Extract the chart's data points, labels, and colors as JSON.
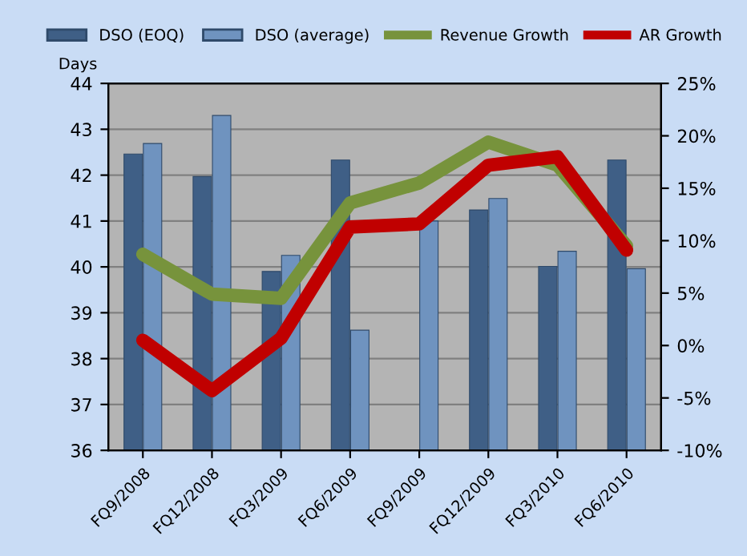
{
  "chart_data": {
    "type": "bar",
    "categories": [
      "FQ9/2008",
      "FQ12/2008",
      "FQ3/2009",
      "FQ6/2009",
      "FQ9/2009",
      "FQ12/2009",
      "FQ3/2010",
      "FQ6/2010"
    ],
    "ylabel": "Days",
    "ylim": [
      36,
      44
    ],
    "yticks": [
      36,
      37,
      38,
      39,
      40,
      41,
      42,
      43,
      44
    ],
    "y2lim": [
      -10,
      25
    ],
    "y2ticks": [
      {
        "value": -10,
        "label": "-10%"
      },
      {
        "value": -5,
        "label": "-5%"
      },
      {
        "value": 0,
        "label": "0%"
      },
      {
        "value": 5,
        "label": "5%"
      },
      {
        "value": 10,
        "label": "10%"
      },
      {
        "value": 15,
        "label": "15%"
      },
      {
        "value": 20,
        "label": "20%"
      },
      {
        "value": 25,
        "label": "25%"
      }
    ],
    "grid": "y",
    "legend": "top",
    "marker": "none",
    "line_style": "solid",
    "series": [
      {
        "name": "DSO (EOQ)",
        "color": "#3f5f86",
        "values": [
          42.46,
          41.97,
          39.9,
          42.33,
          null,
          41.24,
          40.01,
          42.33
        ]
      },
      {
        "name": "DSO (average)",
        "color": "#6f93bf",
        "values": [
          42.69,
          43.3,
          40.25,
          38.62,
          41.0,
          41.49,
          40.34,
          39.96
        ]
      },
      {
        "name": "Revenue Growth",
        "type": "line",
        "axis": "y2",
        "color": "#77933c",
        "values": [
          8.7,
          4.9,
          4.5,
          13.6,
          15.5,
          19.4,
          17.2,
          9.5
        ]
      },
      {
        "name": "AR Growth",
        "type": "line",
        "axis": "y2",
        "color": "#c00000",
        "values": [
          0.5,
          -4.3,
          0.7,
          11.3,
          11.6,
          17.2,
          18.0,
          9.1
        ]
      }
    ]
  }
}
